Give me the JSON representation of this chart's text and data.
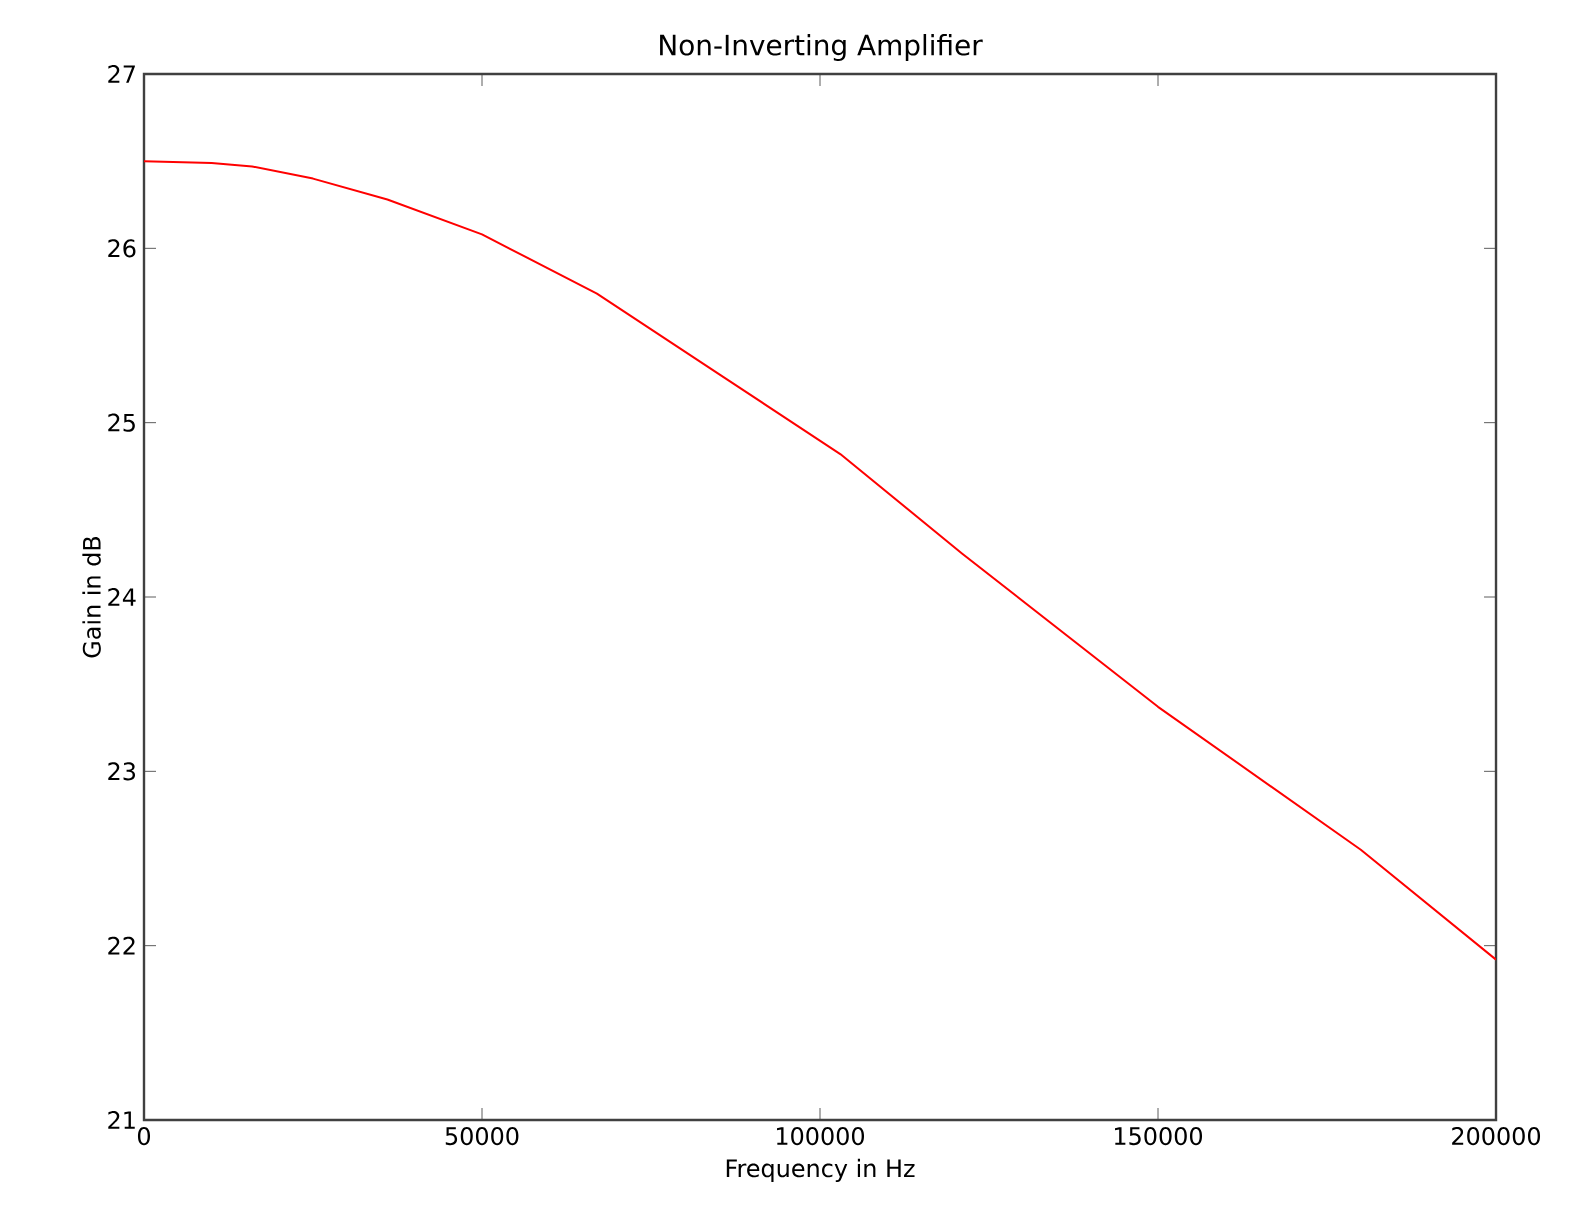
{
  "chart_data": {
    "type": "line",
    "title": "Non-Inverting Amplifier",
    "xlabel": "Frequency in Hz",
    "ylabel": "Gain in dB",
    "xlim": [
      0,
      200000
    ],
    "ylim": [
      21,
      27
    ],
    "xticks": [
      0,
      50000,
      100000,
      150000,
      200000
    ],
    "yticks": [
      21,
      22,
      23,
      24,
      25,
      26,
      27
    ],
    "marker": "none",
    "line_style": "solid",
    "series": [
      {
        "color": "#ff0000",
        "x": [
          0,
          10000,
          16000,
          25000,
          36000,
          50000,
          67000,
          85000,
          103000,
          121000,
          150000,
          180000,
          200000
        ],
        "values": [
          26.5,
          26.49,
          26.47,
          26.4,
          26.28,
          26.08,
          25.74,
          25.28,
          24.82,
          24.25,
          23.37,
          22.55,
          21.92
        ]
      }
    ]
  }
}
